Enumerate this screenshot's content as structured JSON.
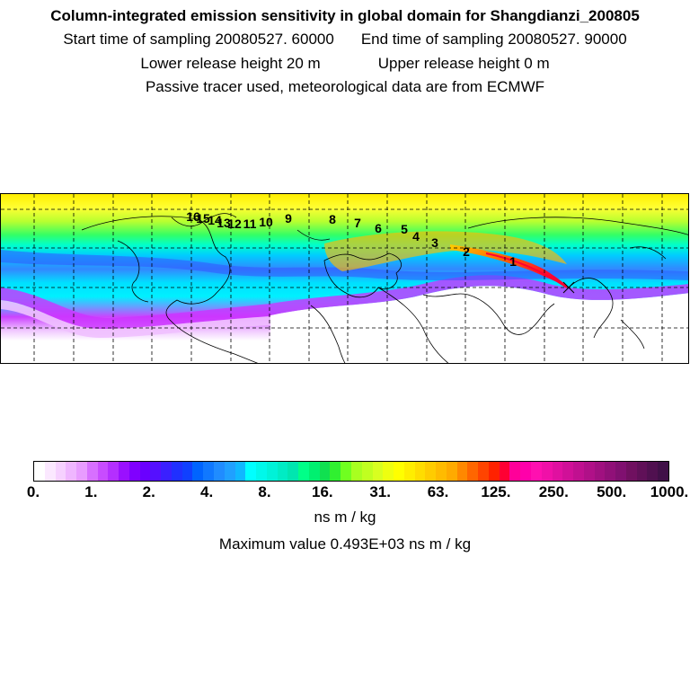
{
  "header": {
    "title": "Column-integrated emission sensitivity in global domain for Shangdianzi_200805",
    "start_label": "Start time of sampling 20080527. 60000",
    "end_label": "End time of sampling 20080527. 90000",
    "lower_label": "Lower release height   20 m",
    "upper_label": "Upper release height    0 m",
    "info": "Passive tracer used, meteorological data are from ECMWF"
  },
  "map": {
    "day_labels": [
      "1",
      "2",
      "3",
      "4",
      "5",
      "6",
      "7",
      "8",
      "9",
      "10",
      "11",
      "12",
      "13",
      "14",
      "15",
      "16"
    ],
    "colors": {
      "high_yellow": "#ffff33",
      "green": "#33ff33",
      "cyan": "#00ffff",
      "blue": "#3388ff",
      "violet": "#6633ff",
      "purple": "#cc33ff",
      "plume_red": "#ff3300",
      "plume_orange": "#ff9900"
    }
  },
  "colorbar": {
    "tick_labels": [
      "0.",
      "1.",
      "2.",
      "4.",
      "8.",
      "16.",
      "31.",
      "63.",
      "125.",
      "250.",
      "500.",
      "1000."
    ],
    "unit": "ns m / kg",
    "colors": [
      "#ffffff",
      "#fbe8ff",
      "#f6d1ff",
      "#efb6ff",
      "#e89cff",
      "#d770ff",
      "#c84cff",
      "#b42fff",
      "#9a10ff",
      "#8000ff",
      "#6a00ff",
      "#5510ff",
      "#3a20ff",
      "#2030ff",
      "#1040ff",
      "#0064ff",
      "#1078ff",
      "#208cff",
      "#20a0ff",
      "#10b8ff",
      "#00ffff",
      "#00f8ea",
      "#00f2d8",
      "#00ecc4",
      "#00e6b0",
      "#00ff88",
      "#00f070",
      "#10e050",
      "#30f030",
      "#70ff20",
      "#a8ff20",
      "#c0ff20",
      "#d8ff20",
      "#eeff10",
      "#ffff00",
      "#ffee00",
      "#ffdd00",
      "#ffcc00",
      "#ffbb00",
      "#ffaa00",
      "#ff8800",
      "#ff6600",
      "#ff4400",
      "#ff2200",
      "#ff0033",
      "#ff0099",
      "#ff00aa",
      "#ff10b0",
      "#f010a8",
      "#e010a0",
      "#d01098",
      "#c01090",
      "#b01088",
      "#a01080",
      "#901078",
      "#801070",
      "#701060",
      "#601058",
      "#501050",
      "#401048"
    ]
  },
  "max_value": "Maximum value  0.493E+03 ns m / kg"
}
